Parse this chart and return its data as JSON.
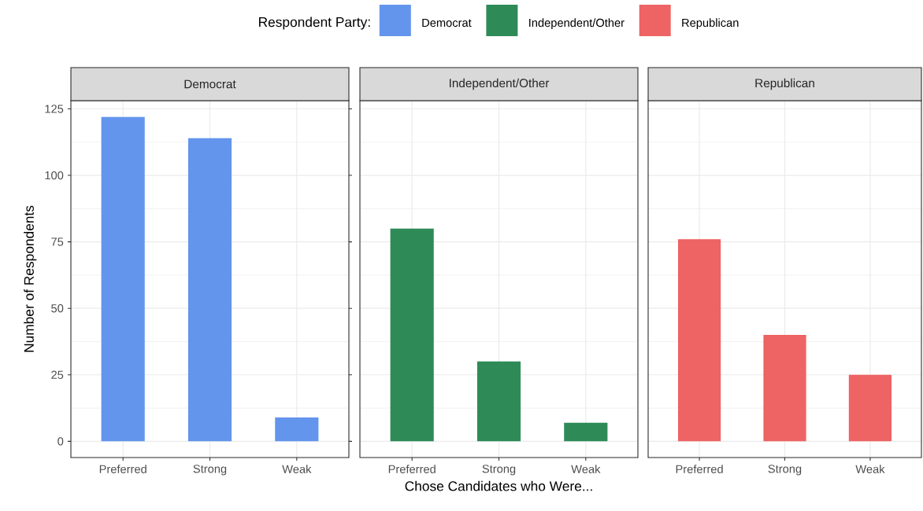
{
  "chart_data": [
    {
      "type": "bar",
      "title": "Democrat",
      "categories": [
        "Preferred",
        "Strong",
        "Weak"
      ],
      "ylabel": "Number of Respondents",
      "legend_title": "Respondent Party:",
      "legend": "top",
      "series": [
        {
          "name": "Democrat",
          "color": "#6495ed",
          "values": [
            122,
            114,
            9
          ]
        }
      ],
      "ylim": [
        -6.1,
        128.1
      ],
      "yticks": [
        0,
        25,
        50,
        75,
        100,
        125
      ],
      "grid": true
    },
    {
      "type": "bar",
      "title": "Independent/Other",
      "categories": [
        "Preferred",
        "Strong",
        "Weak"
      ],
      "xlabel": "Chose Candidates who Were...",
      "legend": "top",
      "series": [
        {
          "name": "Independent/Other",
          "color": "#2e8b57",
          "values": [
            80,
            30,
            7
          ]
        }
      ],
      "ylim": [
        -6.1,
        128.1
      ],
      "yticks": [
        0,
        25,
        50,
        75,
        100,
        125
      ],
      "grid": true,
      "tick_labels": "x"
    },
    {
      "type": "bar",
      "title": "Republican",
      "categories": [
        "Preferred",
        "Strong",
        "Weak"
      ],
      "legend": "top",
      "series": [
        {
          "name": "Republican",
          "color": "#ee6363",
          "values": [
            76,
            40,
            25
          ]
        }
      ],
      "ylim": [
        -6.1,
        128.1
      ],
      "yticks": [
        0,
        25,
        50,
        75,
        100,
        125
      ],
      "grid": true,
      "tick_labels": "x"
    }
  ]
}
